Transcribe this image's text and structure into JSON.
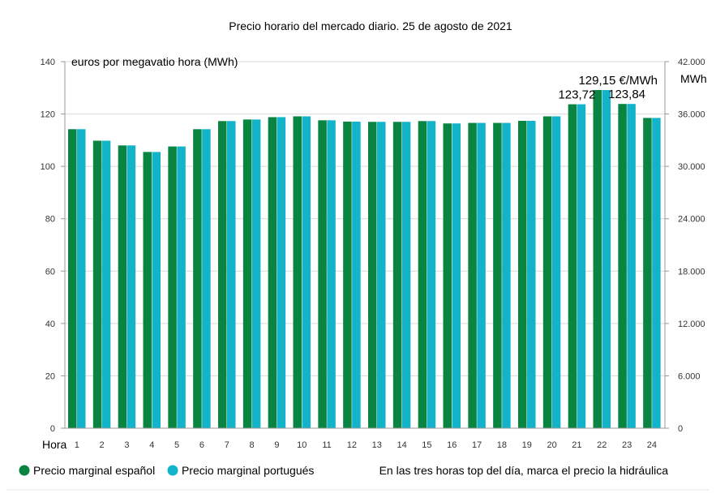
{
  "colors": {
    "spain": "#0a8441",
    "portugal": "#13b4ca",
    "grid": "#d9d9d9",
    "axis": "#999999"
  },
  "chart_data": {
    "type": "bar",
    "title": "Precio horario del mercado diario. 25 de agosto de 2021",
    "ylabel": "euros por megavatio hora (MWh)",
    "y2label": "MWh",
    "xlabel": "Hora",
    "ylim": [
      0,
      140
    ],
    "y2lim": [
      0,
      42000
    ],
    "yticks": [
      "0",
      "20",
      "40",
      "60",
      "80",
      "100",
      "120",
      "140"
    ],
    "y2ticks": [
      "0",
      "6.000",
      "12.000",
      "18.000",
      "24.000",
      "30.000",
      "36.000",
      "42.000"
    ],
    "categories": [
      "1",
      "2",
      "3",
      "4",
      "5",
      "6",
      "7",
      "8",
      "9",
      "10",
      "11",
      "12",
      "13",
      "14",
      "15",
      "16",
      "17",
      "18",
      "19",
      "20",
      "21",
      "22",
      "23",
      "24"
    ],
    "series": [
      {
        "name": "Precio marginal español",
        "values": [
          114.2,
          109.8,
          108.0,
          105.5,
          107.6,
          114.2,
          117.3,
          117.9,
          118.8,
          119.1,
          117.6,
          117.1,
          117.0,
          117.0,
          117.3,
          116.4,
          116.6,
          116.6,
          117.4,
          119.1,
          123.72,
          129.15,
          123.84,
          118.5
        ]
      },
      {
        "name": "Precio marginal portugués",
        "values": [
          114.2,
          109.8,
          108.0,
          105.5,
          107.6,
          114.2,
          117.3,
          117.9,
          118.8,
          119.1,
          117.6,
          117.1,
          117.0,
          117.0,
          117.3,
          116.4,
          116.6,
          116.6,
          117.4,
          119.1,
          123.72,
          129.15,
          123.84,
          118.5
        ]
      }
    ],
    "annotations": [
      {
        "category": "21",
        "text": "123,72"
      },
      {
        "category": "22",
        "text": "129,15 €/MWh"
      },
      {
        "category": "23",
        "text": "123,84"
      }
    ],
    "note": "En las tres horas top del día, marca el precio la hidráulica",
    "grid": true,
    "legend_position": "bottom-left"
  }
}
